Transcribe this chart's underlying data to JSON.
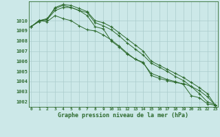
{
  "xlabel": "Graphe pression niveau de la mer (hPa)",
  "x": [
    0,
    1,
    2,
    3,
    4,
    5,
    6,
    7,
    8,
    9,
    10,
    11,
    12,
    13,
    14,
    15,
    16,
    17,
    18,
    19,
    20,
    21,
    22,
    23
  ],
  "series": [
    [
      1009.4,
      1010.0,
      1009.9,
      1010.5,
      1010.2,
      1010.0,
      1009.5,
      1009.1,
      1009.0,
      1008.6,
      1008.1,
      1007.5,
      1006.8,
      1006.2,
      1005.9,
      1004.6,
      1004.3,
      1004.1,
      1003.9,
      1003.8,
      1003.5,
      1002.8,
      1002.0,
      1001.7
    ],
    [
      1009.4,
      1009.9,
      1010.1,
      1011.0,
      1011.3,
      1011.3,
      1011.0,
      1010.5,
      1009.4,
      1009.2,
      1008.0,
      1007.4,
      1006.7,
      1006.2,
      1005.8,
      1004.8,
      1004.5,
      1004.2,
      1004.0,
      1003.7,
      1002.6,
      1002.4,
      1001.8,
      1001.65
    ],
    [
      1009.4,
      1010.0,
      1010.2,
      1011.2,
      1011.5,
      1011.3,
      1011.0,
      1010.8,
      1009.8,
      1009.5,
      1009.1,
      1008.5,
      1007.8,
      1007.2,
      1006.6,
      1005.8,
      1005.4,
      1005.0,
      1004.5,
      1004.1,
      1003.5,
      1003.1,
      1002.5,
      1001.65
    ],
    [
      1009.4,
      1010.0,
      1010.1,
      1011.3,
      1011.6,
      1011.5,
      1011.2,
      1010.9,
      1010.0,
      1009.8,
      1009.4,
      1008.8,
      1008.2,
      1007.6,
      1007.0,
      1006.0,
      1005.6,
      1005.2,
      1004.8,
      1004.4,
      1003.9,
      1003.4,
      1002.8,
      1001.65
    ]
  ],
  "line_color": "#2d6a2d",
  "marker": "+",
  "bg_color": "#cce8e8",
  "grid_color": "#aacccc",
  "text_color": "#2d6a2d",
  "ylim": [
    1001.5,
    1011.9
  ],
  "yticks": [
    1002,
    1003,
    1004,
    1005,
    1006,
    1007,
    1008,
    1009,
    1010
  ],
  "xticks": [
    0,
    1,
    2,
    3,
    4,
    5,
    6,
    7,
    8,
    9,
    10,
    11,
    12,
    13,
    14,
    15,
    16,
    17,
    18,
    19,
    20,
    21,
    22,
    23
  ],
  "ylabel_fontsize": 5.5,
  "xlabel_fontsize": 6.0
}
